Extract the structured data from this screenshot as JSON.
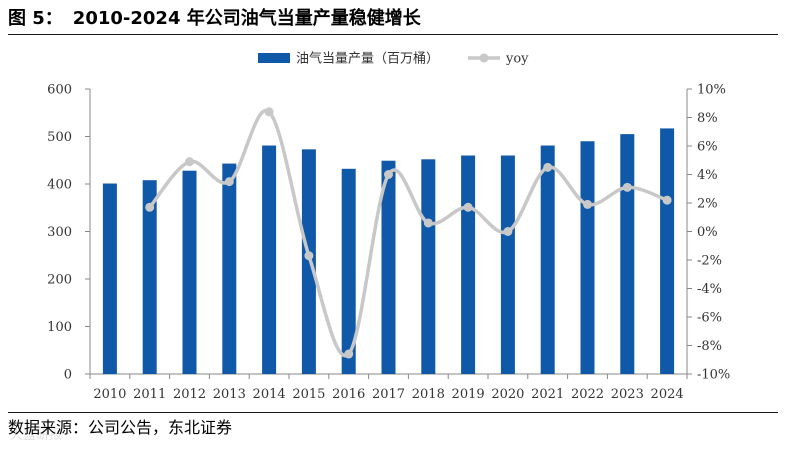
{
  "figure": {
    "label": "图 5：",
    "title": "2010-2024 年公司油气当量产量稳健增长"
  },
  "source": "数据来源：公司公告，东北证券",
  "watermark": "大盘研报",
  "colors": {
    "bar": "#1058a8",
    "line": "#c8c8c8",
    "axis": "#888888",
    "text": "#333333"
  },
  "chart_data": {
    "type": "bar",
    "title": "",
    "categories": [
      "2010",
      "2011",
      "2012",
      "2013",
      "2014",
      "2015",
      "2016",
      "2017",
      "2018",
      "2019",
      "2020",
      "2021",
      "2022",
      "2023",
      "2024"
    ],
    "series": [
      {
        "name": "油气当量产量（百万桶）",
        "type": "bar",
        "axis": "left",
        "values": [
          401,
          408,
          428,
          443,
          481,
          473,
          432,
          449,
          452,
          460,
          460,
          481,
          490,
          505,
          517
        ]
      },
      {
        "name": "yoy",
        "type": "line",
        "axis": "right",
        "values": [
          null,
          1.7,
          4.9,
          3.5,
          8.4,
          -1.7,
          -8.6,
          4.0,
          0.6,
          1.7,
          0.0,
          4.5,
          1.9,
          3.1,
          2.2
        ]
      }
    ],
    "y_left": {
      "min": 0,
      "max": 600,
      "ticks": [
        0,
        100,
        200,
        300,
        400,
        500,
        600
      ],
      "tick_labels": [
        "0",
        "100",
        "200",
        "300",
        "400",
        "500",
        "600"
      ]
    },
    "y_right": {
      "min": -10,
      "max": 10,
      "ticks": [
        -10,
        -8,
        -6,
        -4,
        -2,
        0,
        2,
        4,
        6,
        8,
        10
      ],
      "tick_labels": [
        "-10%",
        "-8%",
        "-6%",
        "-4%",
        "-2%",
        "0%",
        "2%",
        "4%",
        "6%",
        "8%",
        "10%"
      ]
    },
    "legend_position": "top-center",
    "grid": false
  }
}
